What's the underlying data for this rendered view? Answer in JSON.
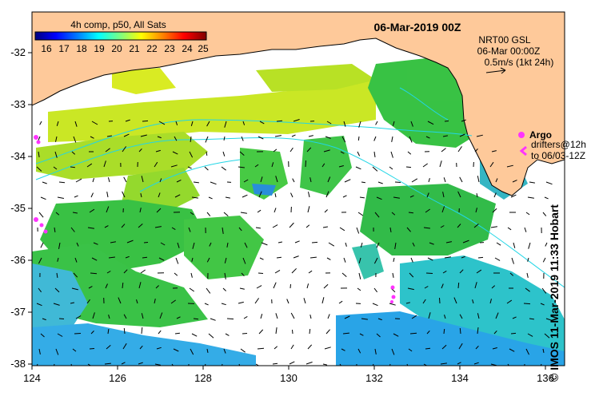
{
  "header": {
    "composite_title": "4h comp, p50, All Sats",
    "datetime": "06-Mar-2019 00Z"
  },
  "colorbar": {
    "ticks": [
      "16",
      "17",
      "18",
      "19",
      "20",
      "21",
      "22",
      "23",
      "24",
      "25"
    ],
    "colors": [
      "#00007f",
      "#0000ff",
      "#007fff",
      "#00ffff",
      "#7fff7f",
      "#ffff00",
      "#ff7f00",
      "#ff0000",
      "#7f0000"
    ]
  },
  "info": {
    "line1": "NRT00 GSL",
    "line2": "06-Mar 00:00Z",
    "line3": "0.5m/s (1kt 24h)"
  },
  "legend": {
    "argo": "Argo",
    "drifters_line1": "drifters@12h",
    "drifters_line2": "to 06/03-12Z"
  },
  "credit": "© IMOS 11-Mar-2019 11:33 Hobart",
  "axes": {
    "x_ticks": [
      "124",
      "126",
      "128",
      "130",
      "132",
      "134",
      "136"
    ],
    "y_ticks": [
      "-32",
      "-33",
      "-34",
      "-35",
      "-36",
      "-37",
      "-38"
    ]
  },
  "colors": {
    "land": "#fec99a",
    "ocean_gap": "#ffffff",
    "sst_warm": "#8fdc1a",
    "sst_mid": "#2ebf3a",
    "sst_cool": "#2aa8e6",
    "argo": "#ff33ff",
    "drifter": "#ff33ff",
    "contour": "#22d6e6"
  }
}
